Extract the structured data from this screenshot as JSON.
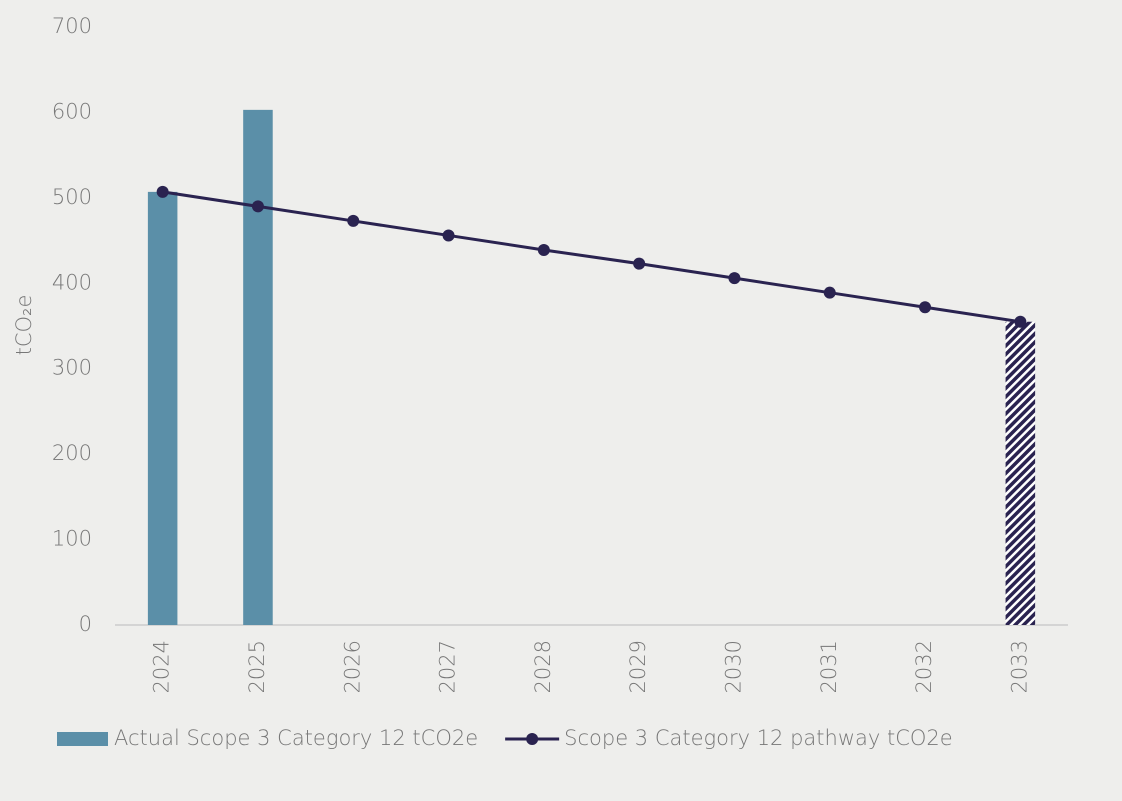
{
  "chart_data": {
    "type": "bar",
    "y_label": "tCO₂e",
    "categories": [
      "2024",
      "2025",
      "2026",
      "2027",
      "2028",
      "2029",
      "2030",
      "2031",
      "2032",
      "2033"
    ],
    "series": [
      {
        "name": "Actual Scope 3 Category 12 tCO2e",
        "type": "bar",
        "color": "#5b8fa8",
        "values": [
          507,
          603,
          null,
          null,
          null,
          null,
          null,
          null,
          null,
          null
        ]
      },
      {
        "type": "bar",
        "color": "#2a2350",
        "pattern": "hatch",
        "values": [
          null,
          null,
          null,
          null,
          null,
          null,
          null,
          null,
          null,
          355
        ]
      },
      {
        "name": "Scope 3 Category 12 pathway tCO2e",
        "type": "line",
        "color": "#2a2350",
        "values": [
          507,
          490,
          473,
          456,
          439,
          423,
          406,
          389,
          372,
          355
        ]
      }
    ],
    "ylim": [
      0,
      700
    ],
    "yticks": [
      0,
      100,
      200,
      300,
      400,
      500,
      600,
      700
    ],
    "grid": false,
    "legend": "bottom"
  }
}
